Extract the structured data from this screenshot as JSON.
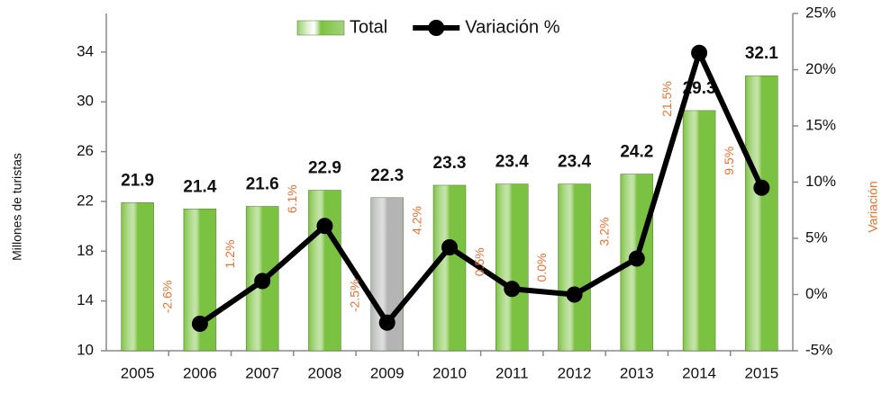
{
  "chart_data": {
    "type": "bar",
    "categories": [
      "2005",
      "2006",
      "2007",
      "2008",
      "2009",
      "2010",
      "2011",
      "2012",
      "2013",
      "2014",
      "2015"
    ],
    "series": [
      {
        "name": "Total",
        "type": "bar",
        "color": "#7cc242",
        "colors": [
          "#7cc242",
          "#7cc242",
          "#7cc242",
          "#7cc242",
          "#b4b4b4",
          "#7cc242",
          "#7cc242",
          "#7cc242",
          "#7cc242",
          "#7cc242",
          "#7cc242"
        ],
        "values": [
          21.9,
          21.4,
          21.6,
          22.9,
          22.3,
          23.3,
          23.4,
          23.4,
          24.2,
          29.3,
          32.1
        ]
      },
      {
        "name": "Variación %",
        "type": "line",
        "axis": "y2",
        "color": "#000000",
        "label_color": "#f07030",
        "values": [
          null,
          -2.6,
          1.2,
          6.1,
          -2.5,
          4.2,
          0.5,
          0.0,
          3.2,
          21.5,
          9.5
        ],
        "value_labels": [
          null,
          "-2.6%",
          "1.2%",
          "6.1%",
          "-2.5%",
          "4.2%",
          "0.5%",
          "0.0%",
          "3.2%",
          "21.5%",
          "9.5%"
        ]
      }
    ],
    "ylabel": "Millones de turistas",
    "y2label": "Variación",
    "y2label_color": "#f07030",
    "ylim": [
      10,
      37.1
    ],
    "yticks": [
      10,
      14,
      18,
      22,
      26,
      30,
      34
    ],
    "y2lim": [
      -5,
      25
    ],
    "y2ticks": [
      {
        "value": -5,
        "label": "-5%"
      },
      {
        "value": 0,
        "label": "0%"
      },
      {
        "value": 5,
        "label": "5%"
      },
      {
        "value": 10,
        "label": "10%"
      },
      {
        "value": 15,
        "label": "15%"
      },
      {
        "value": 20,
        "label": "20%"
      },
      {
        "value": 25,
        "label": "25%"
      }
    ],
    "legend": "top",
    "grid": false
  }
}
